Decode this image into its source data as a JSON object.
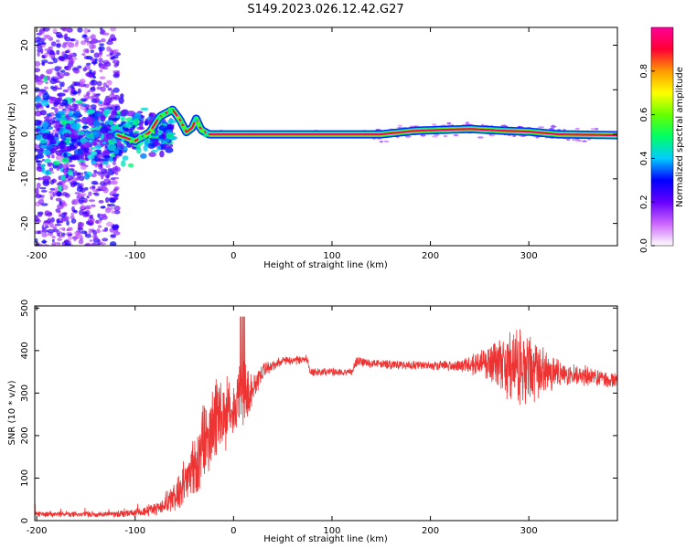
{
  "page_title": "S149.2023.026.12.42.G27",
  "chart_data": [
    {
      "type": "heatmap",
      "xlabel": "Height of straight line (km)",
      "ylabel": "Frequency (Hz)",
      "xlim": [
        -202,
        390
      ],
      "ylim": [
        -25,
        24
      ],
      "xticks": [
        -200,
        -100,
        0,
        100,
        200,
        300
      ],
      "yticks": [
        -20,
        -10,
        0,
        10,
        20
      ],
      "colorbar": {
        "label": "Normalized spectral amplitude",
        "range": [
          0,
          1
        ],
        "ticks": [
          0.0,
          0.2,
          0.4,
          0.6,
          0.8
        ],
        "colormap": [
          "#ffffff",
          "#cc66ff",
          "#6600ff",
          "#0000ff",
          "#00ccff",
          "#00ff66",
          "#66ff00",
          "#ffff00",
          "#ff9900",
          "#ff0033",
          "#ff0099"
        ]
      },
      "ridge": [
        {
          "x": -120,
          "f": 0.0
        },
        {
          "x": -100,
          "f": -1.5
        },
        {
          "x": -85,
          "f": 0.5
        },
        {
          "x": -75,
          "f": 4.0
        },
        {
          "x": -62,
          "f": 5.5
        },
        {
          "x": -55,
          "f": 3.5
        },
        {
          "x": -48,
          "f": 0.5
        },
        {
          "x": -42,
          "f": 1.5
        },
        {
          "x": -38,
          "f": 3.5
        },
        {
          "x": -33,
          "f": 1.0
        },
        {
          "x": -25,
          "f": 0.0
        },
        {
          "x": 150,
          "f": 0.0
        },
        {
          "x": 185,
          "f": 0.8
        },
        {
          "x": 240,
          "f": 1.2
        },
        {
          "x": 275,
          "f": 0.8
        },
        {
          "x": 300,
          "f": 0.6
        },
        {
          "x": 330,
          "f": 0.0
        },
        {
          "x": 390,
          "f": -0.2
        }
      ]
    },
    {
      "type": "line",
      "xlabel": "Height of straight line (km)",
      "ylabel": "SNR (10 * v/v)",
      "xlim": [
        -202,
        390
      ],
      "ylim": [
        0,
        505
      ],
      "xticks": [
        -200,
        -100,
        0,
        100,
        200,
        300
      ],
      "yticks": [
        0,
        100,
        200,
        300,
        400,
        500
      ],
      "color": "#ee3333",
      "envelope": [
        {
          "x": -202,
          "mean": 15,
          "spread": 8
        },
        {
          "x": -120,
          "mean": 15,
          "spread": 8
        },
        {
          "x": -95,
          "mean": 20,
          "spread": 12
        },
        {
          "x": -75,
          "mean": 30,
          "spread": 20
        },
        {
          "x": -60,
          "mean": 60,
          "spread": 40
        },
        {
          "x": -45,
          "mean": 100,
          "spread": 70
        },
        {
          "x": -30,
          "mean": 180,
          "spread": 110
        },
        {
          "x": -15,
          "mean": 240,
          "spread": 110
        },
        {
          "x": 0,
          "mean": 270,
          "spread": 80
        },
        {
          "x": 10,
          "mean": 300,
          "spread": 120
        },
        {
          "x": 20,
          "mean": 310,
          "spread": 40
        },
        {
          "x": 30,
          "mean": 355,
          "spread": 20
        },
        {
          "x": 50,
          "mean": 375,
          "spread": 12
        },
        {
          "x": 75,
          "mean": 378,
          "spread": 12
        },
        {
          "x": 78,
          "mean": 350,
          "spread": 10
        },
        {
          "x": 120,
          "mean": 350,
          "spread": 10
        },
        {
          "x": 125,
          "mean": 375,
          "spread": 14
        },
        {
          "x": 150,
          "mean": 368,
          "spread": 12
        },
        {
          "x": 180,
          "mean": 365,
          "spread": 12
        },
        {
          "x": 230,
          "mean": 365,
          "spread": 15
        },
        {
          "x": 255,
          "mean": 370,
          "spread": 40
        },
        {
          "x": 275,
          "mean": 365,
          "spread": 90
        },
        {
          "x": 295,
          "mean": 360,
          "spread": 110
        },
        {
          "x": 315,
          "mean": 350,
          "spread": 60
        },
        {
          "x": 340,
          "mean": 345,
          "spread": 30
        },
        {
          "x": 390,
          "mean": 330,
          "spread": 20
        }
      ]
    }
  ]
}
